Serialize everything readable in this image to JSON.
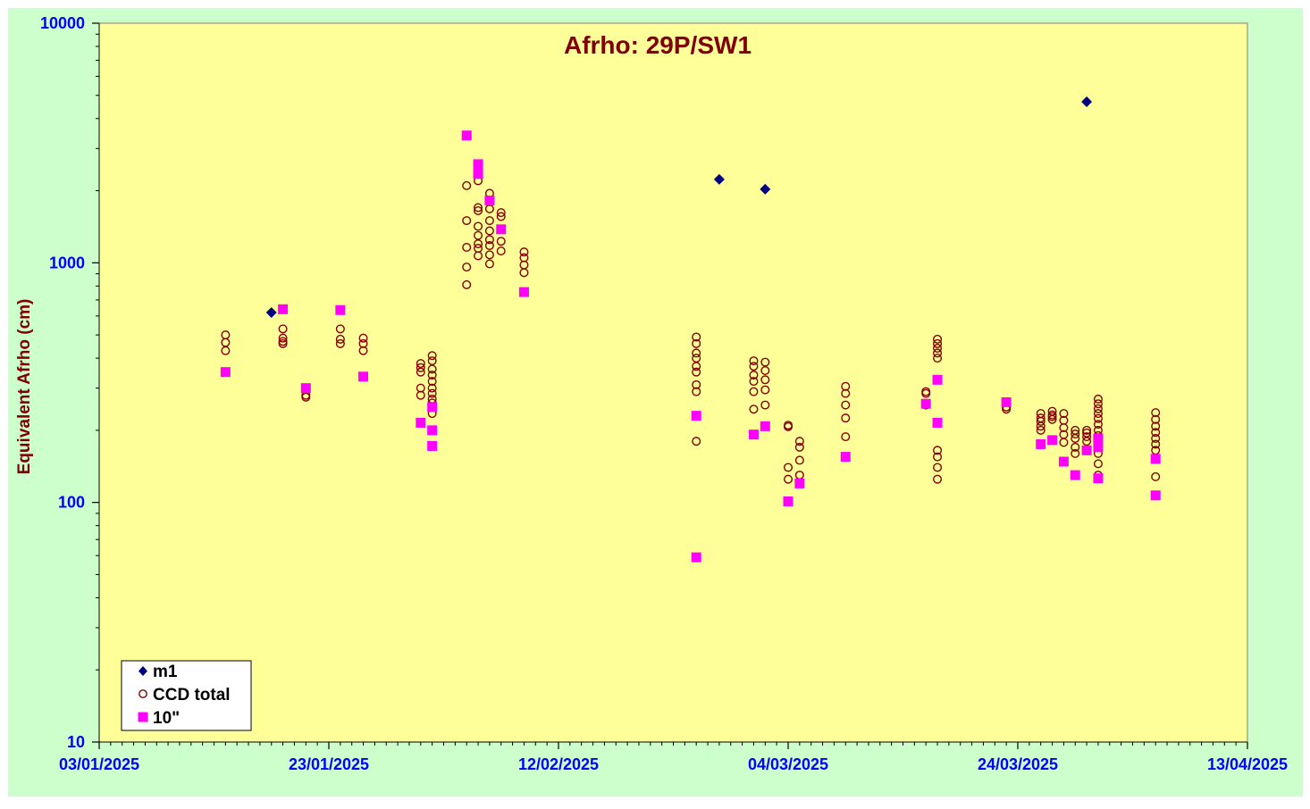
{
  "chart_data": {
    "type": "scatter",
    "title": "Afrho: 29P/SW1",
    "xlabel": "",
    "ylabel": "Equivalent  Afrho (cm)",
    "y_scale": "log",
    "ylim": [
      10,
      10000
    ],
    "xlim": [
      "2025-01-03",
      "2025-04-13"
    ],
    "y_ticks": [
      "10",
      "100",
      "1000",
      "10000"
    ],
    "x_ticks": [
      "03/01/2025",
      "23/01/2025",
      "12/02/2025",
      "04/03/2025",
      "24/03/2025",
      "13/04/2025"
    ],
    "grid": false,
    "legend_position": "bottom-left",
    "colors": {
      "plot_background": "#FFFF99",
      "outer_background": "#CCFFCC",
      "title": "#800000",
      "ylabel": "#800000",
      "tick_labels": "#0000FF",
      "m1": "#000080",
      "ccd_total": "#800000",
      "ten_arcsec": "#FF00FF"
    },
    "series": [
      {
        "name": "m1",
        "marker": "diamond",
        "points": [
          [
            "2025-01-18",
            620
          ],
          [
            "2025-02-26",
            2230
          ],
          [
            "2025-03-02",
            2030
          ],
          [
            "2025-03-30",
            4700
          ]
        ]
      },
      {
        "name": "CCD total",
        "marker": "open-circle",
        "points": [
          [
            "2025-01-14",
            500
          ],
          [
            "2025-01-14",
            465
          ],
          [
            "2025-01-14",
            430
          ],
          [
            "2025-01-19",
            530
          ],
          [
            "2025-01-19",
            485
          ],
          [
            "2025-01-19",
            470
          ],
          [
            "2025-01-19",
            460
          ],
          [
            "2025-01-21",
            280
          ],
          [
            "2025-01-21",
            275
          ],
          [
            "2025-01-24",
            530
          ],
          [
            "2025-01-24",
            480
          ],
          [
            "2025-01-24",
            460
          ],
          [
            "2025-01-26",
            485
          ],
          [
            "2025-01-26",
            460
          ],
          [
            "2025-01-26",
            430
          ],
          [
            "2025-01-31",
            380
          ],
          [
            "2025-01-31",
            365
          ],
          [
            "2025-01-31",
            350
          ],
          [
            "2025-01-31",
            300
          ],
          [
            "2025-01-31",
            280
          ],
          [
            "2025-02-01",
            410
          ],
          [
            "2025-02-01",
            390
          ],
          [
            "2025-02-01",
            360
          ],
          [
            "2025-02-01",
            340
          ],
          [
            "2025-02-01",
            320
          ],
          [
            "2025-02-01",
            300
          ],
          [
            "2025-02-01",
            285
          ],
          [
            "2025-02-01",
            270
          ],
          [
            "2025-02-01",
            260
          ],
          [
            "2025-02-01",
            235
          ],
          [
            "2025-02-04",
            2100
          ],
          [
            "2025-02-04",
            1500
          ],
          [
            "2025-02-04",
            1160
          ],
          [
            "2025-02-04",
            960
          ],
          [
            "2025-02-04",
            810
          ],
          [
            "2025-02-05",
            2200
          ],
          [
            "2025-02-05",
            1700
          ],
          [
            "2025-02-05",
            1650
          ],
          [
            "2025-02-05",
            1420
          ],
          [
            "2025-02-05",
            1300
          ],
          [
            "2025-02-05",
            1200
          ],
          [
            "2025-02-05",
            1150
          ],
          [
            "2025-02-05",
            1070
          ],
          [
            "2025-02-06",
            1950
          ],
          [
            "2025-02-06",
            1800
          ],
          [
            "2025-02-06",
            1680
          ],
          [
            "2025-02-06",
            1500
          ],
          [
            "2025-02-06",
            1360
          ],
          [
            "2025-02-06",
            1250
          ],
          [
            "2025-02-06",
            1180
          ],
          [
            "2025-02-06",
            1080
          ],
          [
            "2025-02-06",
            990
          ],
          [
            "2025-02-07",
            1620
          ],
          [
            "2025-02-07",
            1560
          ],
          [
            "2025-02-07",
            1230
          ],
          [
            "2025-02-07",
            1120
          ],
          [
            "2025-02-09",
            1110
          ],
          [
            "2025-02-09",
            1050
          ],
          [
            "2025-02-09",
            980
          ],
          [
            "2025-02-09",
            910
          ],
          [
            "2025-02-24",
            490
          ],
          [
            "2025-02-24",
            460
          ],
          [
            "2025-02-24",
            420
          ],
          [
            "2025-02-24",
            400
          ],
          [
            "2025-02-24",
            370
          ],
          [
            "2025-02-24",
            350
          ],
          [
            "2025-02-24",
            310
          ],
          [
            "2025-02-24",
            290
          ],
          [
            "2025-02-24",
            180
          ],
          [
            "2025-03-01",
            390
          ],
          [
            "2025-03-01",
            370
          ],
          [
            "2025-03-01",
            340
          ],
          [
            "2025-03-01",
            320
          ],
          [
            "2025-03-01",
            290
          ],
          [
            "2025-03-01",
            245
          ],
          [
            "2025-03-02",
            385
          ],
          [
            "2025-03-02",
            355
          ],
          [
            "2025-03-02",
            325
          ],
          [
            "2025-03-02",
            295
          ],
          [
            "2025-03-02",
            255
          ],
          [
            "2025-03-04",
            210
          ],
          [
            "2025-03-04",
            207
          ],
          [
            "2025-03-04",
            140
          ],
          [
            "2025-03-04",
            125
          ],
          [
            "2025-03-05",
            180
          ],
          [
            "2025-03-05",
            170
          ],
          [
            "2025-03-05",
            150
          ],
          [
            "2025-03-05",
            130
          ],
          [
            "2025-03-09",
            305
          ],
          [
            "2025-03-09",
            285
          ],
          [
            "2025-03-09",
            255
          ],
          [
            "2025-03-09",
            225
          ],
          [
            "2025-03-09",
            188
          ],
          [
            "2025-03-16",
            290
          ],
          [
            "2025-03-16",
            285
          ],
          [
            "2025-03-16",
            255
          ],
          [
            "2025-03-17",
            480
          ],
          [
            "2025-03-17",
            460
          ],
          [
            "2025-03-17",
            440
          ],
          [
            "2025-03-17",
            420
          ],
          [
            "2025-03-17",
            400
          ],
          [
            "2025-03-17",
            165
          ],
          [
            "2025-03-17",
            155
          ],
          [
            "2025-03-17",
            140
          ],
          [
            "2025-03-17",
            125
          ],
          [
            "2025-03-23",
            250
          ],
          [
            "2025-03-23",
            245
          ],
          [
            "2025-03-26",
            235
          ],
          [
            "2025-03-26",
            225
          ],
          [
            "2025-03-26",
            218
          ],
          [
            "2025-03-26",
            208
          ],
          [
            "2025-03-26",
            200
          ],
          [
            "2025-03-27",
            240
          ],
          [
            "2025-03-27",
            232
          ],
          [
            "2025-03-27",
            228
          ],
          [
            "2025-03-27",
            222
          ],
          [
            "2025-03-28",
            235
          ],
          [
            "2025-03-28",
            220
          ],
          [
            "2025-03-28",
            205
          ],
          [
            "2025-03-28",
            192
          ],
          [
            "2025-03-28",
            178
          ],
          [
            "2025-03-29",
            200
          ],
          [
            "2025-03-29",
            193
          ],
          [
            "2025-03-29",
            185
          ],
          [
            "2025-03-29",
            170
          ],
          [
            "2025-03-29",
            160
          ],
          [
            "2025-03-30",
            200
          ],
          [
            "2025-03-30",
            195
          ],
          [
            "2025-03-30",
            188
          ],
          [
            "2025-03-30",
            180
          ],
          [
            "2025-03-31",
            270
          ],
          [
            "2025-03-31",
            258
          ],
          [
            "2025-03-31",
            246
          ],
          [
            "2025-03-31",
            235
          ],
          [
            "2025-03-31",
            224
          ],
          [
            "2025-03-31",
            212
          ],
          [
            "2025-03-31",
            200
          ],
          [
            "2025-03-31",
            190
          ],
          [
            "2025-03-31",
            180
          ],
          [
            "2025-03-31",
            170
          ],
          [
            "2025-03-31",
            160
          ],
          [
            "2025-03-31",
            145
          ],
          [
            "2025-03-31",
            130
          ],
          [
            "2025-04-05",
            237
          ],
          [
            "2025-04-05",
            222
          ],
          [
            "2025-04-05",
            208
          ],
          [
            "2025-04-05",
            196
          ],
          [
            "2025-04-05",
            185
          ],
          [
            "2025-04-05",
            175
          ],
          [
            "2025-04-05",
            165
          ],
          [
            "2025-04-05",
            128
          ]
        ]
      },
      {
        "name": "10\"",
        "marker": "square",
        "points": [
          [
            "2025-01-14",
            350
          ],
          [
            "2025-01-19",
            640
          ],
          [
            "2025-01-21",
            300
          ],
          [
            "2025-01-24",
            635
          ],
          [
            "2025-01-26",
            335
          ],
          [
            "2025-01-31",
            215
          ],
          [
            "2025-02-01",
            250
          ],
          [
            "2025-02-01",
            200
          ],
          [
            "2025-02-01",
            172
          ],
          [
            "2025-02-04",
            3400
          ],
          [
            "2025-02-05",
            2580
          ],
          [
            "2025-02-05",
            2350
          ],
          [
            "2025-02-06",
            1820
          ],
          [
            "2025-02-07",
            1380
          ],
          [
            "2025-02-09",
            755
          ],
          [
            "2025-02-24",
            230
          ],
          [
            "2025-02-24",
            59
          ],
          [
            "2025-03-01",
            192
          ],
          [
            "2025-03-02",
            208
          ],
          [
            "2025-03-04",
            101
          ],
          [
            "2025-03-05",
            120
          ],
          [
            "2025-03-09",
            155
          ],
          [
            "2025-03-16",
            258
          ],
          [
            "2025-03-17",
            325
          ],
          [
            "2025-03-17",
            215
          ],
          [
            "2025-03-23",
            262
          ],
          [
            "2025-03-26",
            175
          ],
          [
            "2025-03-27",
            182
          ],
          [
            "2025-03-28",
            148
          ],
          [
            "2025-03-29",
            130
          ],
          [
            "2025-03-30",
            165
          ],
          [
            "2025-03-31",
            185
          ],
          [
            "2025-03-31",
            170
          ],
          [
            "2025-03-31",
            126
          ],
          [
            "2025-04-05",
            152
          ],
          [
            "2025-04-05",
            107
          ]
        ]
      }
    ]
  }
}
